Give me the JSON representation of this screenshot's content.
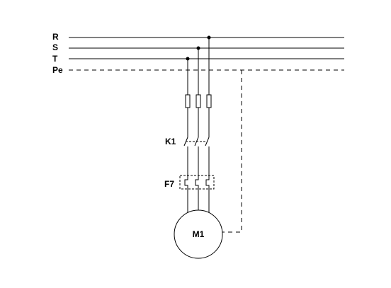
{
  "bus": {
    "r_label": "R",
    "s_label": "S",
    "t_label": "T",
    "pe_label": "Pe"
  },
  "contactor": {
    "label": "K1"
  },
  "overload_relay": {
    "label": "F7"
  },
  "motor": {
    "label": "M1"
  }
}
